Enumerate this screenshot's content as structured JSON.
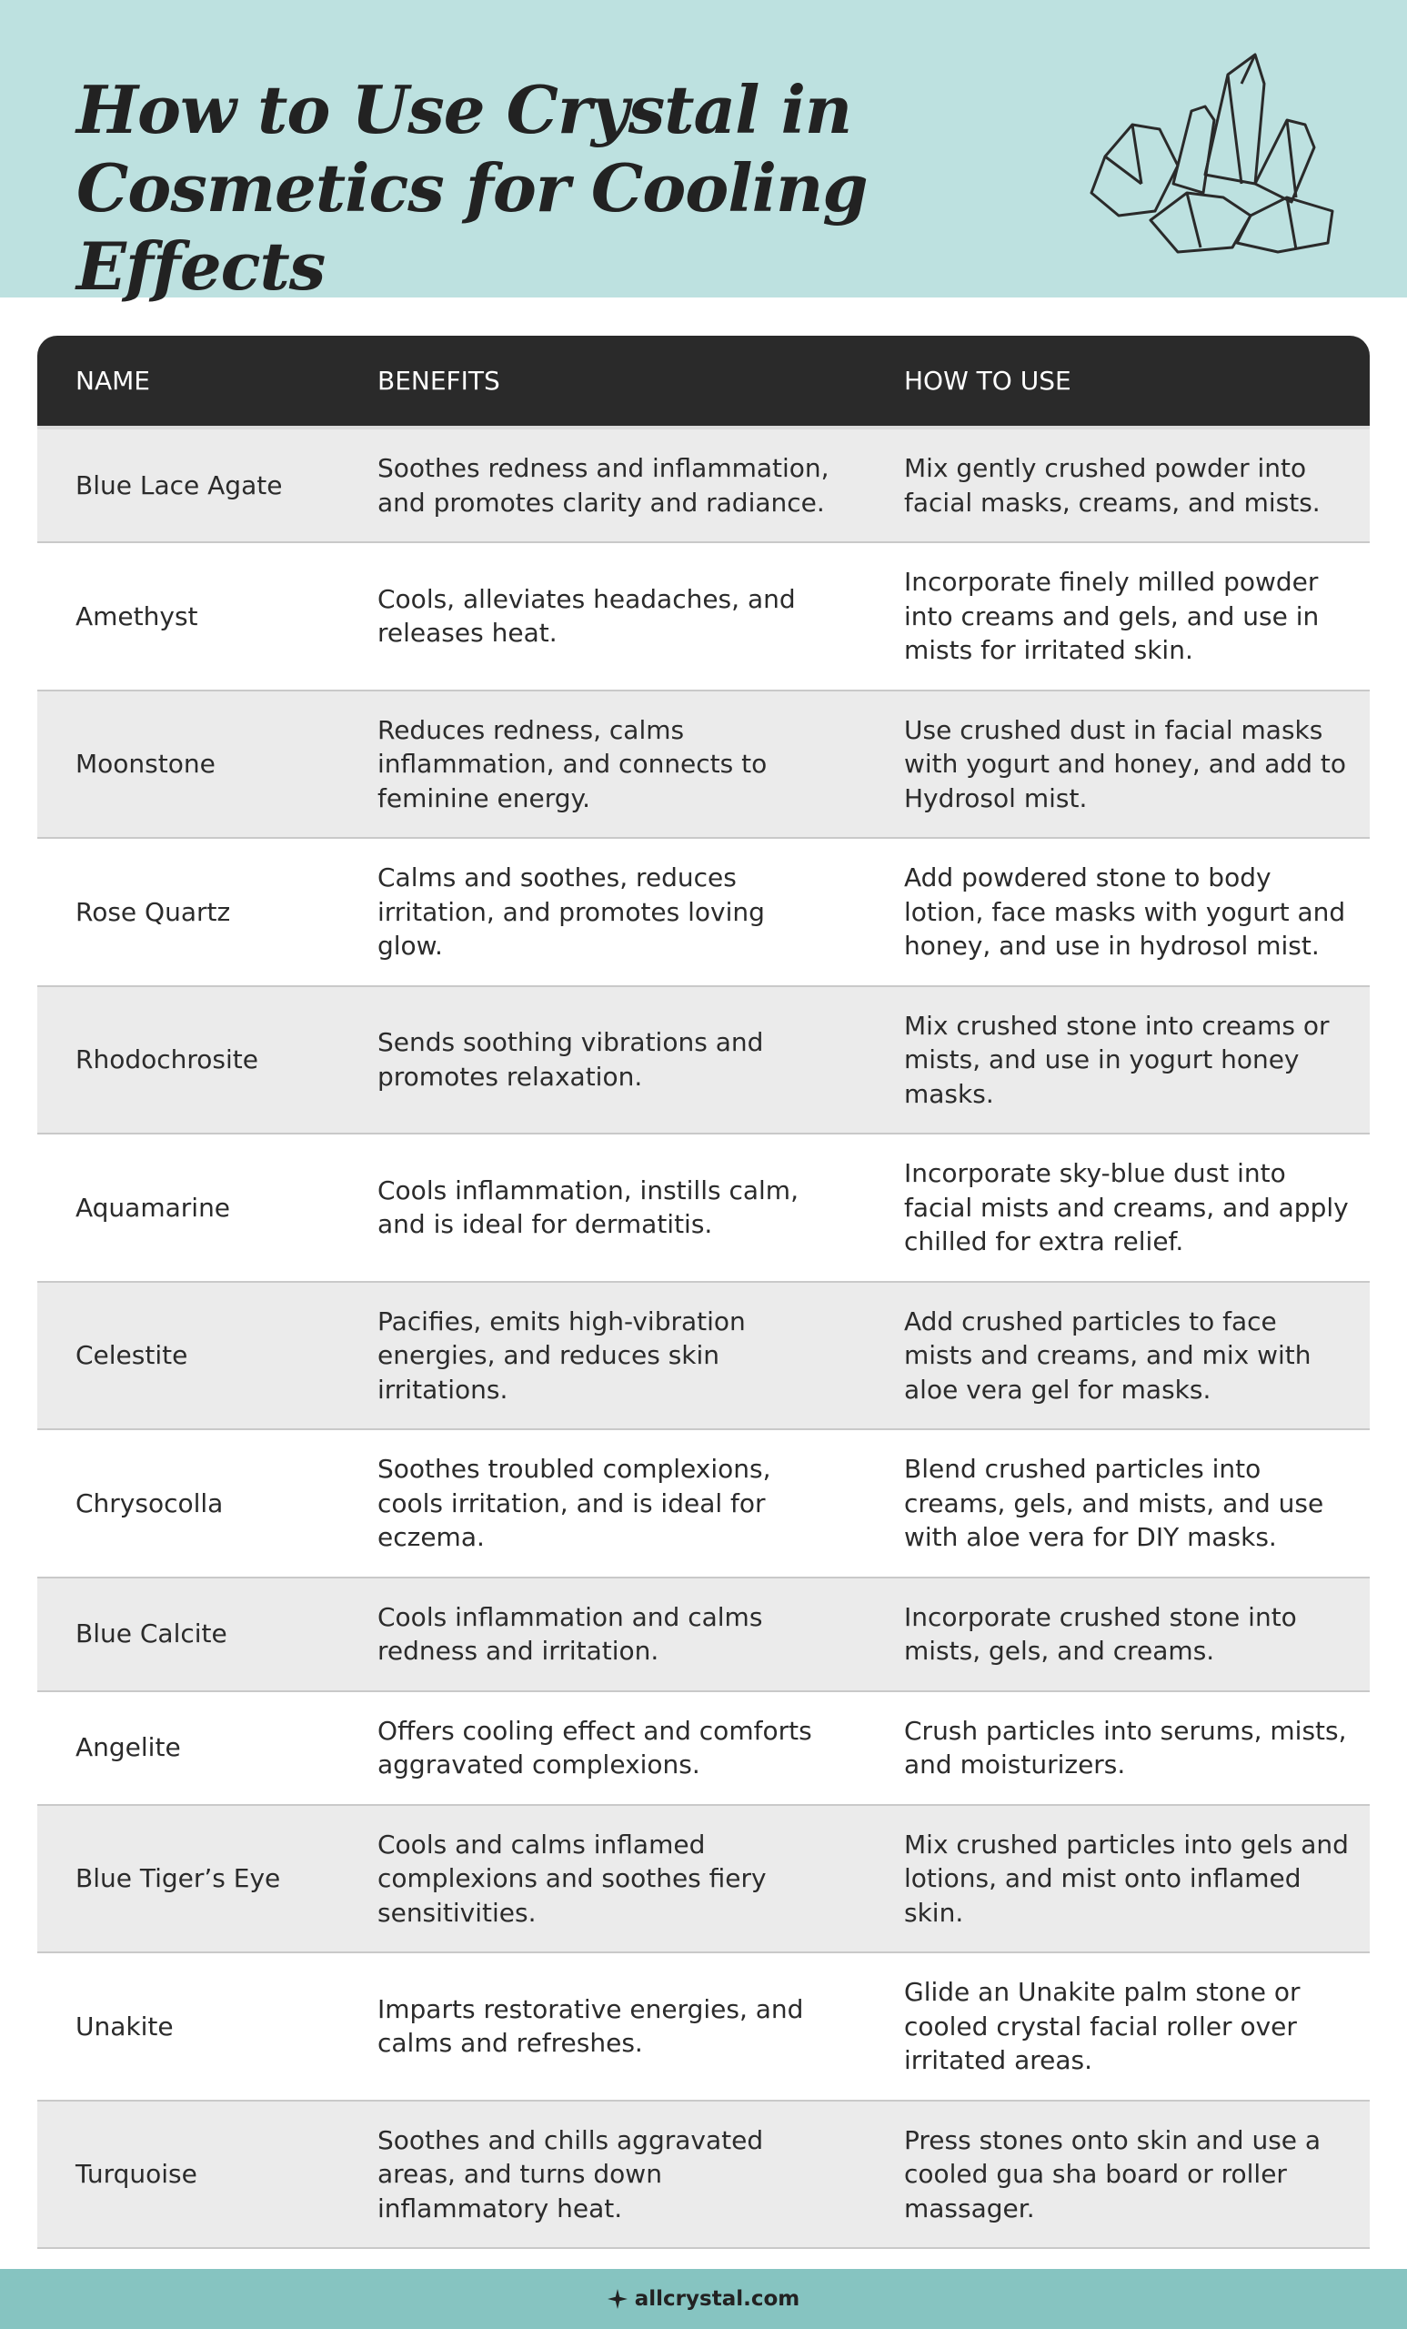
{
  "header": {
    "title": "How to Use Crystal in Cosmetics for Cooling Effects"
  },
  "table": {
    "columns": [
      "NAME",
      "BENEFITS",
      "HOW TO USE"
    ],
    "rows": [
      [
        "Blue Lace Agate",
        "Soothes redness and inflammation, and promotes clarity and radiance.",
        "Mix gently crushed powder into facial masks, creams, and mists."
      ],
      [
        "Amethyst",
        "Cools, alleviates headaches, and releases heat.",
        "Incorporate finely milled powder into creams and gels, and use in mists for irritated skin."
      ],
      [
        "Moonstone",
        "Reduces redness, calms inflammation, and connects to feminine energy.",
        "Use crushed dust in facial masks with yogurt and honey, and add to Hydrosol mist."
      ],
      [
        "Rose Quartz",
        "Calms and soothes, reduces irritation, and promotes loving glow.",
        "Add powdered stone to body lotion, face masks with yogurt and honey, and use in hydrosol mist."
      ],
      [
        "Rhodochrosite",
        "Sends soothing vibrations and promotes relaxation.",
        "Mix crushed stone into creams or mists, and use in yogurt honey masks."
      ],
      [
        "Aquamarine",
        "Cools inflammation, instills calm, and is ideal for dermatitis.",
        "Incorporate sky-blue dust into facial mists and creams, and apply chilled for extra relief."
      ],
      [
        "Celestite",
        "Pacifies, emits high-vibration energies, and reduces skin irritations.",
        "Add crushed particles to face mists and creams, and mix with aloe vera gel for masks."
      ],
      [
        "Chrysocolla",
        "Soothes troubled complexions, cools irritation, and is ideal for eczema.",
        "Blend crushed particles into creams, gels, and mists, and use with aloe vera for DIY masks."
      ],
      [
        "Blue Calcite",
        "Cools inflammation and calms redness and irritation.",
        "Incorporate crushed stone into mists, gels, and creams."
      ],
      [
        "Angelite",
        "Offers cooling effect and comforts aggravated complexions.",
        "Crush particles into serums, mists, and moisturizers."
      ],
      [
        "Blue Tiger’s Eye",
        "Cools and calms inflamed complexions and soothes fiery sensitivities.",
        "Mix crushed particles into gels and lotions, and mist onto inflamed skin."
      ],
      [
        "Unakite",
        "Imparts restorative energies, and calms and refreshes.",
        "Glide an Unakite palm stone or cooled crystal facial roller over irritated areas."
      ],
      [
        "Turquoise",
        "Soothes and chills aggravated areas, and turns down inflammatory heat.",
        "Press stones onto skin and use a cooled gua sha board or roller massager."
      ]
    ]
  },
  "footer": {
    "site": "allcrystal.com"
  }
}
